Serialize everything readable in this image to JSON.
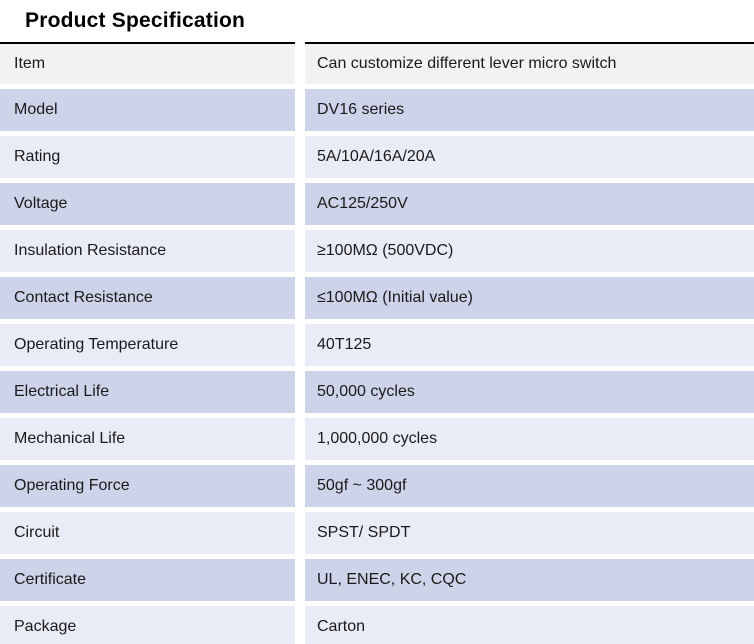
{
  "page": {
    "title": "Product Specification"
  },
  "table": {
    "header": {
      "label": "Item",
      "value": "Can customize different lever micro switch"
    },
    "rows": [
      {
        "label": "Model",
        "value": "DV16 series"
      },
      {
        "label": "Rating",
        "value": "5A/10A/16A/20A"
      },
      {
        "label": "Voltage",
        "value": "AC125/250V"
      },
      {
        "label": "Insulation Resistance",
        "value": "≥100MΩ (500VDC)"
      },
      {
        "label": "Contact Resistance",
        "value": "≤100MΩ (Initial value)"
      },
      {
        "label": "Operating Temperature",
        "value": "40T125"
      },
      {
        "label": "Electrical Life",
        "value": "50,000 cycles"
      },
      {
        "label": "Mechanical Life",
        "value": "1,000,000 cycles"
      },
      {
        "label": "Operating Force",
        "value": "50gf ~  300gf"
      },
      {
        "label": "Circuit",
        "value": "SPST/ SPDT"
      },
      {
        "label": "Certificate",
        "value": "UL, ENEC, KC, CQC"
      },
      {
        "label": "Package",
        "value": "Carton"
      }
    ],
    "colors": {
      "header_bg": "#f2f2f2",
      "row_dark_bg": "#cdd3e8",
      "row_light_bg": "#e9ebf6",
      "top_border": "#000000",
      "text": "#1a1a1a"
    }
  }
}
